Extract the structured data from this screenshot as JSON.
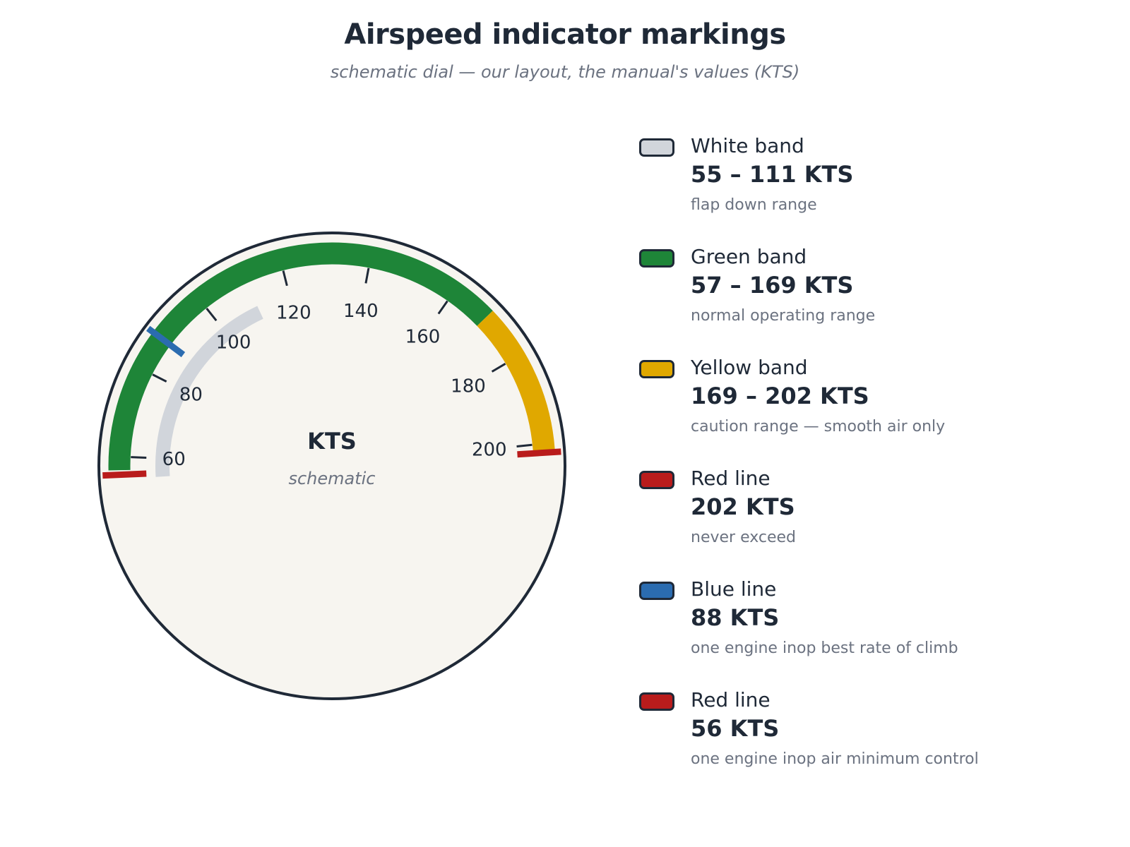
{
  "title": "Airspeed indicator markings",
  "subtitle": "schematic dial — our layout, the manual's values (KTS)",
  "chart_data": {
    "type": "gauge",
    "unit": "KTS",
    "center_label": "KTS",
    "center_sublabel": "schematic",
    "ticks": [
      60,
      80,
      100,
      120,
      140,
      160,
      180,
      200
    ],
    "tick_labels": [
      "60",
      "80",
      "100",
      "120",
      "140",
      "160",
      "180",
      "200"
    ],
    "arcs": [
      {
        "name": "White band",
        "from": 55,
        "to": 111,
        "color": "#d1d5db"
      },
      {
        "name": "Green band",
        "from": 57,
        "to": 169,
        "color": "#1e8538"
      },
      {
        "name": "Yellow band",
        "from": 169,
        "to": 202,
        "color": "#e0a800"
      }
    ],
    "lines": [
      {
        "name": "Red line",
        "value": 202,
        "color": "#b91c1c"
      },
      {
        "name": "Blue line",
        "value": 88,
        "color": "#2b6cb0"
      },
      {
        "name": "Red line",
        "value": 56,
        "color": "#b91c1c"
      }
    ]
  },
  "legend": [
    {
      "name": "White band",
      "value": "55 – 111 KTS",
      "desc": "flap down range",
      "color": "#d1d5db"
    },
    {
      "name": "Green band",
      "value": "57 – 169 KTS",
      "desc": "normal operating range",
      "color": "#1e8538"
    },
    {
      "name": "Yellow band",
      "value": "169 – 202 KTS",
      "desc": "caution range — smooth air only",
      "color": "#e0a800"
    },
    {
      "name": "Red line",
      "value": "202 KTS",
      "desc": "never exceed",
      "color": "#b91c1c"
    },
    {
      "name": "Blue line",
      "value": "88 KTS",
      "desc": "one engine inop best rate of climb",
      "color": "#2b6cb0"
    },
    {
      "name": "Red line",
      "value": "56 KTS",
      "desc": "one engine inop air minimum control",
      "color": "#b91c1c"
    }
  ]
}
